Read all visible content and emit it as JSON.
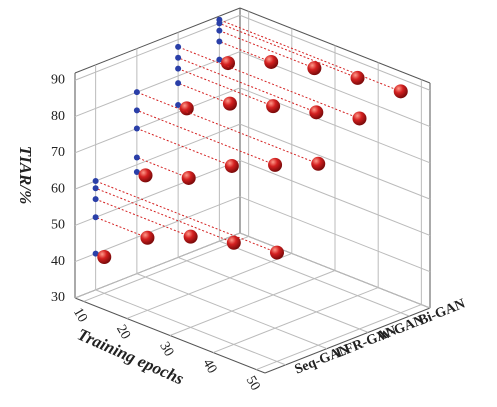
{
  "chart_data": {
    "type": "scatter3d",
    "xlabel": "Training epochs",
    "zlabel": "TIAR/%",
    "xlim": [
      8,
      52
    ],
    "xticks": [
      10,
      20,
      30,
      40,
      50
    ],
    "zlim": [
      30,
      92
    ],
    "zticks": [
      30,
      40,
      50,
      60,
      70,
      80,
      90
    ],
    "color": "#d42020",
    "projection_color": "#2a3fa8",
    "grid": true,
    "series": [
      {
        "name": "Seq-GAN",
        "x": [
          10,
          20,
          30,
          40,
          50
        ],
        "values": [
          40,
          50,
          55,
          58,
          60
        ]
      },
      {
        "name": "LFR-GAN",
        "x": [
          10,
          20,
          30,
          40,
          50
        ],
        "values": [
          58,
          62,
          70,
          75,
          80
        ]
      },
      {
        "name": "W-GAN",
        "x": [
          10,
          20,
          30,
          40,
          50
        ],
        "values": [
          72,
          78,
          82,
          85,
          88
        ]
      },
      {
        "name": "Bi-GAN",
        "x": [
          10,
          20,
          30,
          40,
          50
        ],
        "values": [
          80,
          85,
          88,
          90,
          91
        ]
      }
    ]
  }
}
